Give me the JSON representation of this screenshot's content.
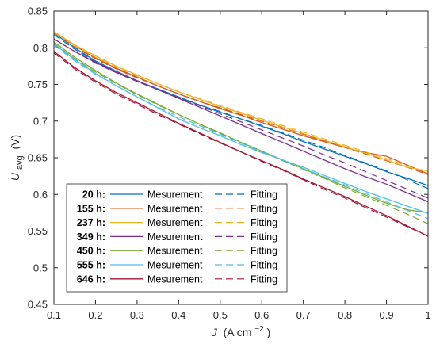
{
  "chart_data": {
    "type": "line",
    "xlabel_var": "J",
    "xlabel_unit": "(A cm",
    "xlabel_exp": "−2",
    "xlabel_close": ")",
    "ylabel_var": "U",
    "ylabel_sub": "avg",
    "ylabel_unit": "(V)",
    "xlim": [
      0.1,
      1.0
    ],
    "ylim": [
      0.45,
      0.85
    ],
    "xticks": [
      0.1,
      0.2,
      0.3,
      0.4,
      0.5,
      0.6,
      0.7,
      0.8,
      0.9,
      1.0
    ],
    "xtick_labels": [
      "0.1",
      "0.2",
      "0.3",
      "0.4",
      "0.5",
      "0.6",
      "0.7",
      "0.8",
      "0.9",
      "1"
    ],
    "yticks": [
      0.45,
      0.5,
      0.55,
      0.6,
      0.65,
      0.7,
      0.75,
      0.8,
      0.85
    ],
    "ytick_labels": [
      "0.45",
      "0.5",
      "0.55",
      "0.6",
      "0.65",
      "0.7",
      "0.75",
      "0.8",
      "0.85"
    ],
    "legend_placement": "bottom-left",
    "legend_measurement_label": "Mesurement",
    "legend_fitting_label": "Fitting",
    "x": [
      0.1,
      0.15,
      0.2,
      0.25,
      0.3,
      0.35,
      0.4,
      0.45,
      0.5,
      0.55,
      0.6,
      0.65,
      0.7,
      0.75,
      0.8,
      0.85,
      0.9,
      0.95,
      1.0
    ],
    "series": [
      {
        "name": "20 h:",
        "color": "#0072BD",
        "measurement": [
          0.82,
          0.8,
          0.782,
          0.768,
          0.755,
          0.744,
          0.733,
          0.722,
          0.712,
          0.703,
          0.693,
          0.683,
          0.672,
          0.662,
          0.652,
          0.642,
          0.631,
          0.622,
          0.612
        ],
        "fitting": [
          0.818,
          0.798,
          0.781,
          0.767,
          0.754,
          0.743,
          0.732,
          0.722,
          0.713,
          0.703,
          0.694,
          0.684,
          0.674,
          0.664,
          0.653,
          0.643,
          0.632,
          0.62,
          0.608
        ]
      },
      {
        "name": "155 h:",
        "color": "#D95319",
        "measurement": [
          0.822,
          0.803,
          0.786,
          0.772,
          0.76,
          0.748,
          0.737,
          0.727,
          0.717,
          0.708,
          0.698,
          0.689,
          0.68,
          0.672,
          0.664,
          0.657,
          0.652,
          0.64,
          0.628
        ],
        "fitting": [
          0.82,
          0.801,
          0.785,
          0.771,
          0.759,
          0.748,
          0.737,
          0.727,
          0.718,
          0.709,
          0.7,
          0.691,
          0.682,
          0.673,
          0.664,
          0.655,
          0.646,
          0.637,
          0.627
        ]
      },
      {
        "name": "237 h:",
        "color": "#EDB120",
        "measurement": [
          0.822,
          0.804,
          0.789,
          0.775,
          0.763,
          0.751,
          0.74,
          0.73,
          0.72,
          0.711,
          0.701,
          0.692,
          0.683,
          0.674,
          0.665,
          0.656,
          0.647,
          0.637,
          0.632
        ],
        "fitting": [
          0.821,
          0.803,
          0.787,
          0.774,
          0.762,
          0.751,
          0.74,
          0.731,
          0.721,
          0.712,
          0.703,
          0.694,
          0.685,
          0.676,
          0.667,
          0.658,
          0.649,
          0.639,
          0.63
        ]
      },
      {
        "name": "349 h:",
        "color": "#7E2F8E",
        "measurement": [
          0.812,
          0.795,
          0.78,
          0.767,
          0.755,
          0.743,
          0.731,
          0.719,
          0.707,
          0.695,
          0.683,
          0.671,
          0.659,
          0.647,
          0.635,
          0.624,
          0.614,
          0.602,
          0.59
        ],
        "fitting": [
          0.812,
          0.795,
          0.779,
          0.766,
          0.754,
          0.743,
          0.732,
          0.721,
          0.71,
          0.699,
          0.688,
          0.677,
          0.666,
          0.654,
          0.643,
          0.631,
          0.619,
          0.607,
          0.595
        ]
      },
      {
        "name": "450 h:",
        "color": "#77AC30",
        "measurement": [
          0.808,
          0.787,
          0.769,
          0.752,
          0.737,
          0.723,
          0.709,
          0.696,
          0.684,
          0.671,
          0.659,
          0.647,
          0.635,
          0.623,
          0.611,
          0.599,
          0.588,
          0.579,
          0.575
        ],
        "fitting": [
          0.806,
          0.785,
          0.767,
          0.751,
          0.736,
          0.722,
          0.709,
          0.696,
          0.683,
          0.671,
          0.659,
          0.646,
          0.634,
          0.622,
          0.609,
          0.597,
          0.585,
          0.573,
          0.56
        ]
      },
      {
        "name": "555 h:",
        "color": "#4DBEEE",
        "measurement": [
          0.805,
          0.784,
          0.765,
          0.748,
          0.733,
          0.718,
          0.703,
          0.691,
          0.68,
          0.668,
          0.657,
          0.647,
          0.637,
          0.626,
          0.615,
          0.604,
          0.594,
          0.584,
          0.574
        ],
        "fitting": [
          0.804,
          0.782,
          0.764,
          0.748,
          0.733,
          0.719,
          0.706,
          0.694,
          0.682,
          0.67,
          0.658,
          0.647,
          0.635,
          0.624,
          0.613,
          0.601,
          0.59,
          0.578,
          0.567
        ]
      },
      {
        "name": "646 h:",
        "color": "#A2142F",
        "measurement": [
          0.795,
          0.773,
          0.755,
          0.739,
          0.725,
          0.711,
          0.697,
          0.684,
          0.671,
          0.658,
          0.646,
          0.634,
          0.621,
          0.609,
          0.597,
          0.584,
          0.571,
          0.557,
          0.543
        ],
        "fitting": [
          0.793,
          0.771,
          0.753,
          0.737,
          0.723,
          0.709,
          0.696,
          0.683,
          0.67,
          0.658,
          0.645,
          0.633,
          0.62,
          0.607,
          0.595,
          0.582,
          0.569,
          0.556,
          0.543
        ]
      }
    ]
  }
}
